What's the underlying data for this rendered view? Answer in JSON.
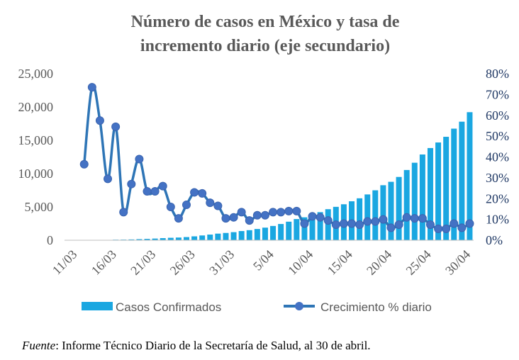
{
  "chart_data": {
    "type": "bar+line",
    "title_lines": [
      "Número de casos en México y tasa de",
      "incremento diario (eje secundario)"
    ],
    "x_tick_labels": [
      "11/03",
      "16/03",
      "21/03",
      "26/03",
      "31/03",
      "5/04",
      "10/04",
      "15/04",
      "20/04",
      "25/04",
      "30/04"
    ],
    "y_left_ticks": [
      "0",
      "5,000",
      "10,000",
      "15,000",
      "20,000",
      "25,000"
    ],
    "y_right_ticks": [
      "0%",
      "10%",
      "20%",
      "30%",
      "40%",
      "50%",
      "60%",
      "70%",
      "80%"
    ],
    "ylim_left": [
      0,
      25000
    ],
    "ylim_right": [
      0,
      0.8
    ],
    "grid": false,
    "legend_position": "bottom",
    "colors": {
      "bars": "#1aa7e1",
      "line": "#2e75b6",
      "marker": "#4472c4",
      "text": "#595959",
      "right_axis_text": "#1f3864"
    },
    "series": [
      {
        "name": "Casos Confirmados",
        "type": "bar",
        "axis": "left",
        "values": [
          11,
          12,
          15,
          26,
          41,
          53,
          82,
          93,
          118,
          164,
          203,
          251,
          316,
          367,
          405,
          475,
          585,
          717,
          848,
          993,
          1094,
          1215,
          1378,
          1510,
          1688,
          1890,
          2143,
          2439,
          2785,
          3181,
          3441,
          3844,
          4219,
          4661,
          5014,
          5399,
          5847,
          6297,
          6875,
          7497,
          8261,
          8772,
          9501,
          10544,
          11633,
          12872,
          13842,
          14677,
          15529,
          16752,
          17799,
          19224
        ]
      },
      {
        "name": "Crecimiento % diario",
        "type": "line",
        "axis": "right",
        "values": [
          0.365,
          0.735,
          0.575,
          0.295,
          0.545,
          0.135,
          0.27,
          0.39,
          0.235,
          0.235,
          0.26,
          0.16,
          0.105,
          0.17,
          0.23,
          0.225,
          0.18,
          0.165,
          0.105,
          0.11,
          0.135,
          0.095,
          0.12,
          0.12,
          0.135,
          0.135,
          0.14,
          0.14,
          0.08,
          0.115,
          0.11,
          0.095,
          0.075,
          0.08,
          0.08,
          0.075,
          0.09,
          0.09,
          0.1,
          0.06,
          0.075,
          0.11,
          0.105,
          0.105,
          0.075,
          0.055,
          0.055,
          0.08,
          0.06,
          0.08
        ]
      }
    ]
  },
  "footnote": {
    "source_label": "Fuente",
    "text": ": Informe Técnico Diario de la Secretaría de Salud, al 30 de abril."
  }
}
